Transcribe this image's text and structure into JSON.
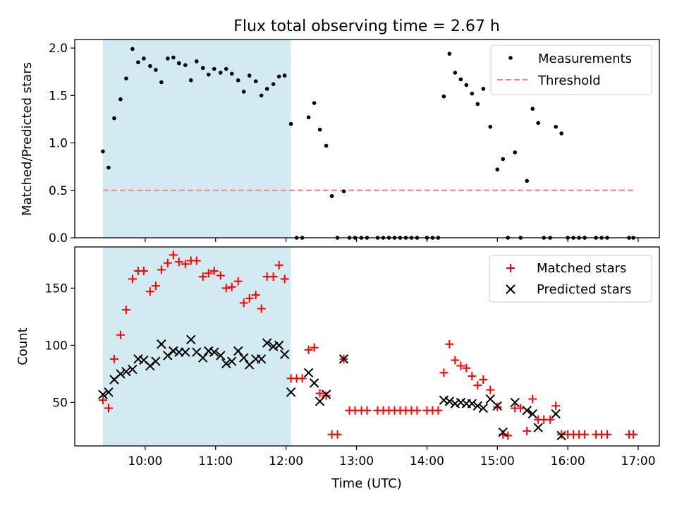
{
  "figure_title": "Flux total observing time = 2.67 h",
  "colors": {
    "shade": "#add8e6",
    "measurement": "#000000",
    "threshold": "#ff7f7f",
    "matched": "#ff0000",
    "predicted": "#000000"
  },
  "chart_data": [
    {
      "type": "scatter",
      "title": "Flux total observing time = 2.67 h",
      "xlabel": "",
      "ylabel": "Matched/Predicted stars",
      "xlim": [
        9.0,
        17.3
      ],
      "ylim": [
        0.0,
        2.09
      ],
      "yticks": [
        0.0,
        0.5,
        1.0,
        1.5,
        2.0
      ],
      "ytick_labels": [
        "0.0",
        "0.5",
        "1.0",
        "1.5",
        "2.0"
      ],
      "shaded_span": [
        9.4,
        12.07
      ],
      "grid": false,
      "legend": {
        "position": "upper right",
        "entries": [
          "Measurements",
          "Threshold"
        ]
      },
      "threshold": {
        "name": "Threshold",
        "y": 0.5,
        "x_range": [
          9.4,
          16.95
        ],
        "style": "dashed"
      },
      "series": [
        {
          "name": "Measurements",
          "marker": "dot",
          "x": [
            9.4,
            9.48,
            9.56,
            9.65,
            9.73,
            9.82,
            9.9,
            9.98,
            10.07,
            10.15,
            10.23,
            10.32,
            10.4,
            10.48,
            10.57,
            10.65,
            10.73,
            10.82,
            10.9,
            10.98,
            11.07,
            11.15,
            11.23,
            11.32,
            11.4,
            11.48,
            11.57,
            11.65,
            11.73,
            11.82,
            11.9,
            11.98,
            12.07,
            12.15,
            12.23,
            12.32,
            12.4,
            12.48,
            12.57,
            12.65,
            12.73,
            12.82,
            12.9,
            12.98,
            13.07,
            13.15,
            13.3,
            13.38,
            13.46,
            13.54,
            13.62,
            13.7,
            13.78,
            13.86,
            14.0,
            14.08,
            14.16,
            14.24,
            14.32,
            14.4,
            14.48,
            14.56,
            14.64,
            14.72,
            14.8,
            14.9,
            15.0,
            15.08,
            15.15,
            15.25,
            15.33,
            15.42,
            15.5,
            15.58,
            15.66,
            15.75,
            15.83,
            15.91,
            16.0,
            16.08,
            16.16,
            16.24,
            16.4,
            16.48,
            16.56,
            16.87,
            16.93
          ],
          "y": [
            0.91,
            0.74,
            1.26,
            1.46,
            1.68,
            1.99,
            1.85,
            1.89,
            1.81,
            1.77,
            1.64,
            1.89,
            1.9,
            1.84,
            1.82,
            1.66,
            1.86,
            1.79,
            1.72,
            1.78,
            1.74,
            1.78,
            1.73,
            1.66,
            1.54,
            1.71,
            1.65,
            1.5,
            1.57,
            1.62,
            1.7,
            1.71,
            1.2,
            0.0,
            0.0,
            1.27,
            1.42,
            1.14,
            0.97,
            0.44,
            0.0,
            0.49,
            0.0,
            0.0,
            0.0,
            0.0,
            0.0,
            0.0,
            0.0,
            0.0,
            0.0,
            0.0,
            0.0,
            0.0,
            0.0,
            0.0,
            0.0,
            1.49,
            1.94,
            1.74,
            1.67,
            1.61,
            1.52,
            1.41,
            1.57,
            1.17,
            0.72,
            0.83,
            0.0,
            0.9,
            0.0,
            0.6,
            1.36,
            1.21,
            0.0,
            0.0,
            1.17,
            1.1,
            0.0,
            0.0,
            0.0,
            0.0,
            0.0,
            0.0,
            0.0,
            0.0,
            0.0
          ]
        }
      ]
    },
    {
      "type": "scatter",
      "title": "",
      "xlabel": "Time (UTC)",
      "ylabel": "Count",
      "xlim": [
        9.0,
        17.3
      ],
      "ylim": [
        12,
        186
      ],
      "yticks": [
        50,
        100,
        150
      ],
      "ytick_labels": [
        "50",
        "100",
        "150"
      ],
      "xticks": [
        10,
        11,
        12,
        13,
        14,
        15,
        16,
        17
      ],
      "xtick_labels": [
        "10:00",
        "11:00",
        "12:00",
        "13:00",
        "14:00",
        "15:00",
        "16:00",
        "17:00"
      ],
      "shaded_span": [
        9.4,
        12.07
      ],
      "grid": false,
      "legend": {
        "position": "upper right",
        "entries": [
          "Matched stars",
          "Predicted stars"
        ]
      },
      "series": [
        {
          "name": "Matched stars",
          "marker": "plus",
          "x": [
            9.4,
            9.48,
            9.56,
            9.65,
            9.73,
            9.82,
            9.9,
            9.98,
            10.07,
            10.15,
            10.23,
            10.32,
            10.4,
            10.48,
            10.57,
            10.65,
            10.73,
            10.82,
            10.9,
            10.98,
            11.07,
            11.15,
            11.23,
            11.32,
            11.4,
            11.48,
            11.57,
            11.65,
            11.73,
            11.82,
            11.9,
            11.98,
            12.07,
            12.15,
            12.23,
            12.32,
            12.4,
            12.48,
            12.57,
            12.65,
            12.73,
            12.82,
            12.9,
            12.98,
            13.07,
            13.15,
            13.3,
            13.38,
            13.46,
            13.54,
            13.62,
            13.7,
            13.78,
            13.86,
            14.0,
            14.08,
            14.16,
            14.24,
            14.32,
            14.4,
            14.48,
            14.56,
            14.64,
            14.72,
            14.8,
            14.9,
            15.0,
            15.08,
            15.15,
            15.25,
            15.33,
            15.42,
            15.5,
            15.58,
            15.66,
            15.75,
            15.83,
            15.91,
            16.0,
            16.08,
            16.16,
            16.24,
            16.4,
            16.48,
            16.56,
            16.87,
            16.93
          ],
          "y": [
            52,
            45,
            88,
            109,
            131,
            158,
            165,
            165,
            147,
            152,
            166,
            172,
            179,
            173,
            171,
            174,
            174,
            160,
            163,
            165,
            161,
            150,
            151,
            156,
            137,
            141,
            144,
            132,
            160,
            160,
            170,
            158,
            71,
            71,
            71,
            96,
            98,
            58,
            56,
            22,
            22,
            88,
            43,
            43,
            43,
            43,
            43,
            43,
            43,
            43,
            43,
            43,
            43,
            43,
            43,
            43,
            43,
            76,
            101,
            87,
            82,
            80,
            73,
            65,
            70,
            61,
            46,
            22,
            21,
            45,
            45,
            25,
            53,
            35,
            35,
            35,
            47,
            22,
            22,
            22,
            22,
            22,
            22,
            22,
            22,
            22,
            22
          ]
        },
        {
          "name": "Predicted stars",
          "marker": "x",
          "x": [
            9.4,
            9.48,
            9.56,
            9.65,
            9.73,
            9.82,
            9.9,
            9.98,
            10.07,
            10.15,
            10.23,
            10.32,
            10.4,
            10.48,
            10.57,
            10.65,
            10.73,
            10.82,
            10.9,
            10.98,
            11.07,
            11.15,
            11.23,
            11.32,
            11.4,
            11.48,
            11.57,
            11.65,
            11.73,
            11.82,
            11.9,
            11.98,
            12.07,
            12.32,
            12.4,
            12.48,
            12.57,
            12.82,
            14.24,
            14.32,
            14.4,
            14.48,
            14.56,
            14.64,
            14.72,
            14.8,
            14.9,
            15.0,
            15.08,
            15.25,
            15.42,
            15.5,
            15.58,
            15.83,
            15.91
          ],
          "y": [
            57,
            59,
            70,
            75,
            77,
            79,
            88,
            87,
            82,
            86,
            101,
            91,
            95,
            94,
            94,
            105,
            94,
            89,
            95,
            94,
            91,
            84,
            86,
            95,
            89,
            83,
            88,
            88,
            102,
            99,
            100,
            92,
            59,
            76,
            67,
            51,
            57,
            88,
            52,
            51,
            49,
            50,
            49,
            49,
            47,
            45,
            53,
            47,
            24,
            50,
            43,
            40,
            28,
            40,
            21
          ]
        }
      ]
    }
  ]
}
